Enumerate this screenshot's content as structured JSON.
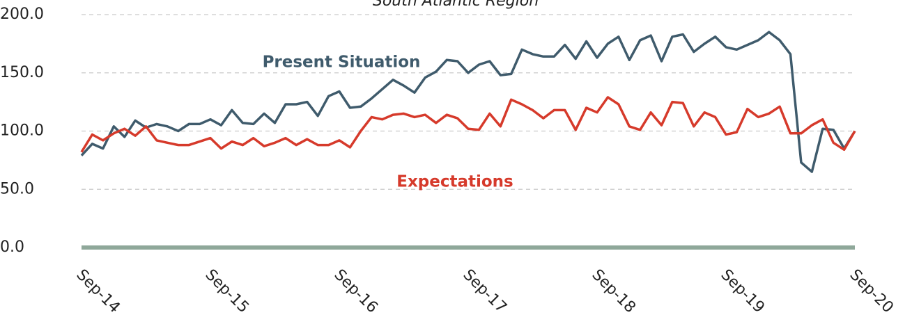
{
  "chart_data": {
    "type": "line",
    "title": "South Atlantic Region",
    "categories": [
      "Sep-14",
      null,
      null,
      null,
      null,
      null,
      null,
      null,
      null,
      null,
      null,
      null,
      "Sep-15",
      null,
      null,
      null,
      null,
      null,
      null,
      null,
      null,
      null,
      null,
      null,
      "Sep-16",
      null,
      null,
      null,
      null,
      null,
      null,
      null,
      null,
      null,
      null,
      null,
      "Sep-17",
      null,
      null,
      null,
      null,
      null,
      null,
      null,
      null,
      null,
      null,
      null,
      "Sep-18",
      null,
      null,
      null,
      null,
      null,
      null,
      null,
      null,
      null,
      null,
      null,
      "Sep-19",
      null,
      null,
      null,
      null,
      null,
      null,
      null,
      null,
      null,
      null,
      null,
      "Sep-20"
    ],
    "series": [
      {
        "name": "Present Situation",
        "color": "#3f5b6c",
        "values": [
          79,
          89,
          85,
          104,
          95,
          109,
          103,
          106,
          104,
          100,
          106,
          106,
          110,
          105,
          118,
          107,
          106,
          115,
          107,
          123,
          123,
          125,
          113,
          130,
          134,
          120,
          121,
          128,
          136,
          144,
          139,
          133,
          146,
          151,
          161,
          160,
          150,
          157,
          160,
          148,
          149,
          170,
          166,
          164,
          164,
          174,
          162,
          177,
          163,
          175,
          181,
          161,
          178,
          182,
          160,
          181,
          183,
          168,
          175,
          181,
          172,
          170,
          174,
          178,
          185,
          178,
          166,
          73,
          65,
          102,
          101,
          85,
          100
        ]
      },
      {
        "name": "Expectations",
        "color": "#d63a2b",
        "values": [
          82,
          97,
          92,
          98,
          102,
          96,
          104,
          92,
          90,
          88,
          88,
          91,
          94,
          85,
          91,
          88,
          94,
          87,
          90,
          94,
          88,
          93,
          88,
          88,
          92,
          86,
          100,
          112,
          110,
          114,
          115,
          112,
          114,
          107,
          114,
          111,
          102,
          101,
          115,
          104,
          127,
          123,
          118,
          111,
          118,
          118,
          101,
          120,
          116,
          129,
          123,
          104,
          101,
          116,
          105,
          125,
          124,
          104,
          116,
          112,
          97,
          99,
          119,
          112,
          115,
          121,
          98,
          98,
          105,
          110,
          90,
          84,
          100
        ]
      }
    ],
    "ylim": [
      0,
      200
    ],
    "yticks": [
      {
        "value": 0,
        "label": "0.0"
      },
      {
        "value": 50,
        "label": "50.0"
      },
      {
        "value": 100,
        "label": "100.0"
      },
      {
        "value": 150,
        "label": "150.0"
      },
      {
        "value": 200,
        "label": "200.0"
      }
    ],
    "grid": true,
    "axis_color": "#8fa89a"
  }
}
